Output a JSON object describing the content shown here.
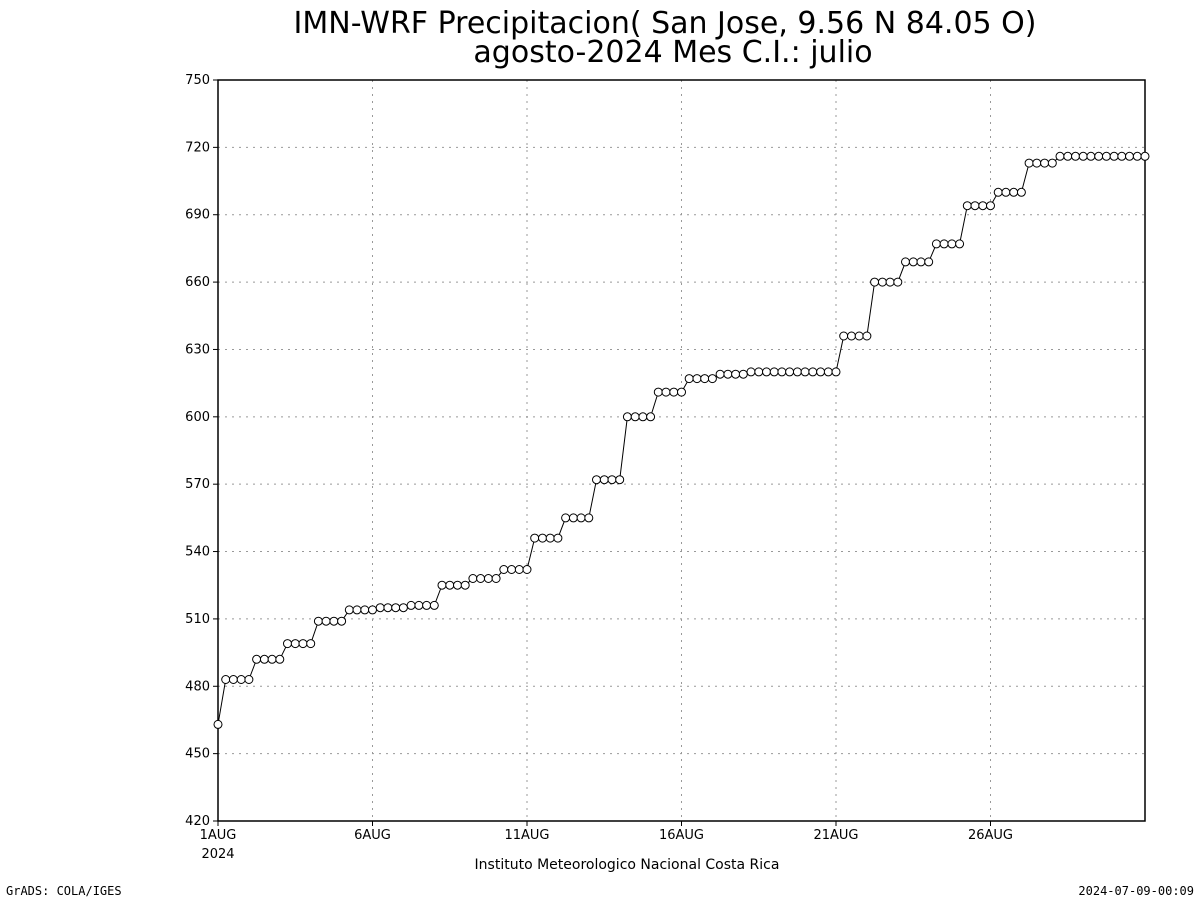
{
  "chart_data": {
    "type": "line",
    "title_line1": "IMN-WRF  Precipitacion( San Jose, 9.56  N 84.05  O)",
    "title_line2": "agosto-2024 Mes C.I.: julio",
    "xlabel": "Instituto Meteorologico Nacional Costa Rica",
    "ylabel": "",
    "ylim": [
      420,
      750
    ],
    "xlim": [
      1,
      31
    ],
    "y_ticks": [
      420,
      450,
      480,
      510,
      540,
      570,
      600,
      630,
      660,
      690,
      720,
      750
    ],
    "x_ticks": [
      {
        "day": 1,
        "label": "1AUG"
      },
      {
        "day": 6,
        "label": "6AUG"
      },
      {
        "day": 11,
        "label": "11AUG"
      },
      {
        "day": 16,
        "label": "16AUG"
      },
      {
        "day": 21,
        "label": "21AUG"
      },
      {
        "day": 26,
        "label": "26AUG"
      }
    ],
    "x_year_label": "2024",
    "grid": true,
    "marker": "open-circle",
    "series": [
      {
        "values": [
          463,
          483,
          483,
          483,
          483,
          492,
          492,
          492,
          492,
          499,
          499,
          499,
          499,
          509,
          509,
          509,
          509,
          514,
          514,
          514,
          514,
          515,
          515,
          515,
          515,
          516,
          516,
          516,
          516,
          525,
          525,
          525,
          525,
          528,
          528,
          528,
          528,
          532,
          532,
          532,
          532,
          546,
          546,
          546,
          546,
          555,
          555,
          555,
          555,
          572,
          572,
          572,
          572,
          600,
          600,
          600,
          600,
          611,
          611,
          611,
          611,
          617,
          617,
          617,
          617,
          619,
          619,
          619,
          619,
          620,
          620,
          620,
          620,
          620,
          620,
          620,
          620,
          620,
          620,
          620,
          620,
          636,
          636,
          636,
          636,
          660,
          660,
          660,
          660,
          669,
          669,
          669,
          669,
          677,
          677,
          677,
          677,
          694,
          694,
          694,
          694,
          700,
          700,
          700,
          700,
          713,
          713,
          713,
          713,
          716,
          716,
          716,
          716,
          716,
          716,
          716,
          716,
          716,
          716,
          716,
          716
        ]
      }
    ]
  },
  "footer": {
    "left": "GrADS: COLA/IGES",
    "right": "2024-07-09-00:09"
  },
  "colors": {
    "line": "#000000",
    "grid": "#999999",
    "marker_fill": "#ffffff"
  }
}
